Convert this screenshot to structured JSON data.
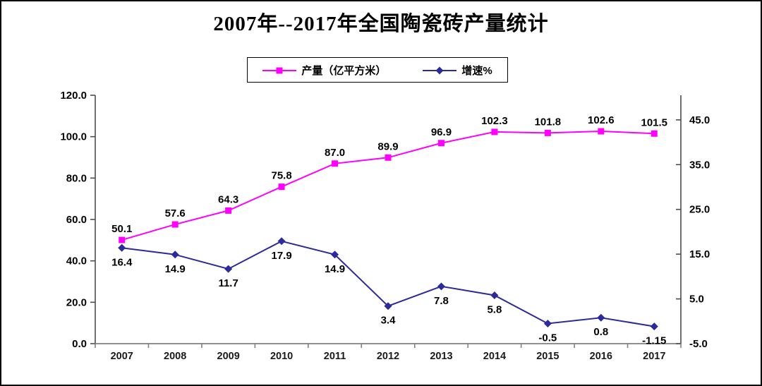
{
  "title": "2007年--2017年全国陶瓷砖产量统计",
  "legend": {
    "items": [
      {
        "label": "产量（亿平方米）",
        "color": "#ff00ff",
        "marker": "square"
      },
      {
        "label": "增速%",
        "color": "#2b2b99",
        "marker": "diamond"
      }
    ]
  },
  "chart_data": {
    "type": "line",
    "title": "2007年--2017年全国陶瓷砖产量统计",
    "categories": [
      "2007",
      "2008",
      "2009",
      "2010",
      "2011",
      "2012",
      "2013",
      "2014",
      "2015",
      "2016",
      "2017"
    ],
    "series": [
      {
        "id": "production",
        "name": "产量（亿平方米）",
        "axis": "left",
        "color": "#ff00ff",
        "marker": "square",
        "label_position": "above",
        "values": [
          50.1,
          57.6,
          64.3,
          75.8,
          87.0,
          89.9,
          96.9,
          102.3,
          101.8,
          102.6,
          101.5
        ],
        "labels": [
          "50.1",
          "57.6",
          "64.3",
          "75.8",
          "87.0",
          "89.9",
          "96.9",
          "102.3",
          "101.8",
          "102.6",
          "101.5"
        ]
      },
      {
        "id": "growth",
        "name": "增速%",
        "axis": "right",
        "color": "#2b2b99",
        "marker": "diamond",
        "label_position": "below",
        "values": [
          16.4,
          14.9,
          11.7,
          17.9,
          14.9,
          3.4,
          7.8,
          5.8,
          -0.5,
          0.8,
          -1.15
        ],
        "labels": [
          "16.4",
          "14.9",
          "11.7",
          "17.9",
          "14.9",
          "3.4",
          "7.8",
          "5.8",
          "-0.5",
          "0.8",
          "-1.15"
        ]
      }
    ],
    "left_axis": {
      "min": 0,
      "max": 120,
      "tick_values": [
        120,
        100,
        80,
        60,
        40,
        20,
        0
      ],
      "tick_labels": [
        "120.0",
        "100.0",
        "80.0",
        "60.0",
        "40.0",
        "20.0",
        "0.0"
      ]
    },
    "right_axis": {
      "min": -5,
      "max": 50.5,
      "tick_values": [
        45,
        35,
        25,
        15,
        5,
        -5
      ],
      "tick_labels": [
        "45.0",
        "35.0",
        "25.0",
        "15.0",
        "5.0",
        "-5.0"
      ]
    },
    "grid": false,
    "legend_position": "top"
  },
  "colors": {
    "axis_vertical": "#4d4d4d",
    "axis_horizontal": "#808080",
    "background": "#ffffff"
  }
}
